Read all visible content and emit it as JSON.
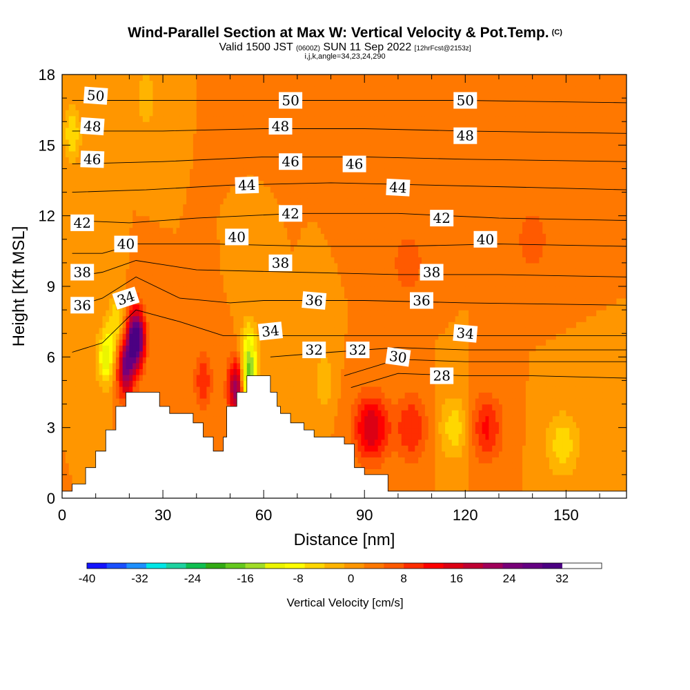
{
  "header": {
    "title": "Wind-Parallel Section at Max W: Vertical Velocity & Pot.Temp.",
    "copyright": "(C)",
    "subtitle_main": "Valid 1500 JST",
    "subtitle_utc": "(0600Z)",
    "subtitle_date": "SUN 11 Sep 2022",
    "subtitle_fcst": "[12hrFcst@2153z]",
    "params": "i,j,k,angle=34,23,24,290"
  },
  "chart_data": {
    "type": "heatmap",
    "xlabel": "Distance [nm]",
    "ylabel": "Height [Kft MSL]",
    "xlim": [
      0,
      168
    ],
    "ylim": [
      0,
      18
    ],
    "xticks": [
      0,
      30,
      60,
      90,
      120,
      150
    ],
    "yticks": [
      0,
      3,
      6,
      9,
      12,
      15,
      18
    ],
    "colorbar": {
      "title": "Vertical Velocity [cm/s]",
      "min": -40,
      "max": 38,
      "step": 3,
      "ticks": [
        -40,
        -32,
        -24,
        -16,
        -8,
        0,
        8,
        16,
        24,
        32
      ],
      "colors": [
        "#1414ff",
        "#1a50ff",
        "#1e90ff",
        "#00e6e6",
        "#1ed2a0",
        "#0fbe50",
        "#32aa14",
        "#64c81e",
        "#a0dc28",
        "#ebf500",
        "#ffff00",
        "#ffd700",
        "#ffb400",
        "#ff9600",
        "#ff7800",
        "#ff5a00",
        "#ff2d00",
        "#ff0000",
        "#dc0014",
        "#be0032",
        "#a0005a",
        "#780078",
        "#640082",
        "#4b0082"
      ]
    },
    "background_w": 2,
    "w_features": [
      {
        "x": 22,
        "z": 6.8,
        "w": 34
      },
      {
        "x": 19,
        "z": 5.5,
        "w": 22
      },
      {
        "x": 13,
        "z": 6.0,
        "w": -14
      },
      {
        "x": 16,
        "z": 7.5,
        "w": -8
      },
      {
        "x": 52,
        "z": 4.7,
        "w": 24
      },
      {
        "x": 55,
        "z": 5.0,
        "w": -20
      },
      {
        "x": 56,
        "z": 6.5,
        "w": -10
      },
      {
        "x": 92,
        "z": 3.0,
        "w": 15
      },
      {
        "x": 104,
        "z": 3.0,
        "w": 9
      },
      {
        "x": 126,
        "z": 3.0,
        "w": 10
      },
      {
        "x": 117,
        "z": 3.0,
        "w": -8
      },
      {
        "x": 149,
        "z": 2.3,
        "w": -8
      },
      {
        "x": 3,
        "z": 15.5,
        "w": -9
      },
      {
        "x": 25,
        "z": 17,
        "w": -6
      },
      {
        "x": 103,
        "z": 10.0,
        "w": 5
      },
      {
        "x": 140,
        "z": 11.0,
        "w": 5
      },
      {
        "x": 42,
        "z": 5.0,
        "w": 9
      },
      {
        "x": 78,
        "z": 5.0,
        "w": -6
      }
    ],
    "terrain": [
      [
        0,
        0.3
      ],
      [
        3,
        0.3
      ],
      [
        3,
        0.6
      ],
      [
        7,
        0.6
      ],
      [
        7,
        1.3
      ],
      [
        10,
        1.3
      ],
      [
        10,
        2.0
      ],
      [
        13,
        2.0
      ],
      [
        13,
        2.9
      ],
      [
        16,
        2.9
      ],
      [
        16,
        3.9
      ],
      [
        19,
        3.9
      ],
      [
        19,
        4.5
      ],
      [
        29,
        4.5
      ],
      [
        29,
        3.9
      ],
      [
        32,
        3.9
      ],
      [
        32,
        3.6
      ],
      [
        39,
        3.6
      ],
      [
        39,
        3.2
      ],
      [
        42,
        3.2
      ],
      [
        42,
        2.6
      ],
      [
        45,
        2.6
      ],
      [
        45,
        2.0
      ],
      [
        48,
        2.0
      ],
      [
        48,
        2.6
      ],
      [
        49,
        2.6
      ],
      [
        49,
        3.9
      ],
      [
        52,
        3.9
      ],
      [
        52,
        4.5
      ],
      [
        55,
        4.5
      ],
      [
        55,
        5.2
      ],
      [
        62,
        5.2
      ],
      [
        62,
        4.5
      ],
      [
        64,
        4.5
      ],
      [
        64,
        3.9
      ],
      [
        65,
        3.9
      ],
      [
        65,
        3.6
      ],
      [
        68,
        3.6
      ],
      [
        68,
        3.2
      ],
      [
        72,
        3.2
      ],
      [
        72,
        2.9
      ],
      [
        75,
        2.9
      ],
      [
        75,
        2.6
      ],
      [
        84,
        2.6
      ],
      [
        84,
        2.3
      ],
      [
        87,
        2.3
      ],
      [
        87,
        1.3
      ],
      [
        90,
        1.3
      ],
      [
        90,
        1.0
      ],
      [
        97,
        1.0
      ],
      [
        97,
        0.3
      ],
      [
        168,
        0.3
      ]
    ],
    "theta_contours": [
      {
        "level": 28,
        "pts": [
          [
            86,
            4.7
          ],
          [
            100,
            5.3
          ],
          [
            120,
            5.2
          ],
          [
            140,
            5.2
          ],
          [
            168,
            5.1
          ]
        ]
      },
      {
        "level": 30,
        "pts": [
          [
            84,
            5.2
          ],
          [
            100,
            5.9
          ],
          [
            120,
            5.8
          ],
          [
            140,
            5.8
          ],
          [
            168,
            5.8
          ]
        ]
      },
      {
        "level": 32,
        "pts": [
          [
            62,
            6.0
          ],
          [
            80,
            6.2
          ],
          [
            100,
            6.4
          ],
          [
            120,
            6.3
          ],
          [
            140,
            6.3
          ],
          [
            168,
            6.3
          ]
        ]
      },
      {
        "level": 34,
        "pts": [
          [
            3,
            6.2
          ],
          [
            12,
            6.6
          ],
          [
            22,
            8.0
          ],
          [
            35,
            7.5
          ],
          [
            48,
            6.9
          ],
          [
            58,
            6.9
          ],
          [
            80,
            6.9
          ],
          [
            110,
            6.9
          ],
          [
            140,
            6.9
          ],
          [
            168,
            6.9
          ]
        ]
      },
      {
        "level": 36,
        "pts": [
          [
            3,
            8.1
          ],
          [
            12,
            8.5
          ],
          [
            22,
            9.4
          ],
          [
            35,
            8.5
          ],
          [
            50,
            8.3
          ],
          [
            60,
            8.4
          ],
          [
            90,
            8.4
          ],
          [
            120,
            8.3
          ],
          [
            168,
            8.2
          ]
        ]
      },
      {
        "level": 38,
        "pts": [
          [
            3,
            9.4
          ],
          [
            12,
            9.6
          ],
          [
            22,
            10.1
          ],
          [
            40,
            9.7
          ],
          [
            70,
            9.6
          ],
          [
            100,
            9.5
          ],
          [
            130,
            9.5
          ],
          [
            168,
            9.4
          ]
        ]
      },
      {
        "level": 40,
        "pts": [
          [
            3,
            10.4
          ],
          [
            12,
            10.4
          ],
          [
            22,
            10.8
          ],
          [
            45,
            10.8
          ],
          [
            75,
            10.7
          ],
          [
            100,
            10.7
          ],
          [
            130,
            10.8
          ],
          [
            168,
            10.7
          ]
        ]
      },
      {
        "level": 42,
        "pts": [
          [
            3,
            11.8
          ],
          [
            20,
            11.7
          ],
          [
            40,
            11.9
          ],
          [
            70,
            12.1
          ],
          [
            100,
            12.1
          ],
          [
            130,
            11.9
          ],
          [
            168,
            11.8
          ]
        ]
      },
      {
        "level": 44,
        "pts": [
          [
            3,
            13.0
          ],
          [
            25,
            13.1
          ],
          [
            50,
            13.3
          ],
          [
            80,
            13.4
          ],
          [
            110,
            13.3
          ],
          [
            140,
            13.2
          ],
          [
            168,
            13.1
          ]
        ]
      },
      {
        "level": 46,
        "pts": [
          [
            3,
            14.2
          ],
          [
            30,
            14.3
          ],
          [
            60,
            14.5
          ],
          [
            90,
            14.5
          ],
          [
            120,
            14.4
          ],
          [
            168,
            14.3
          ]
        ]
      },
      {
        "level": 48,
        "pts": [
          [
            3,
            15.6
          ],
          [
            30,
            15.6
          ],
          [
            60,
            15.7
          ],
          [
            90,
            15.7
          ],
          [
            120,
            15.6
          ],
          [
            168,
            15.5
          ]
        ]
      },
      {
        "level": 50,
        "pts": [
          [
            3,
            16.9
          ],
          [
            30,
            16.9
          ],
          [
            60,
            16.9
          ],
          [
            90,
            16.9
          ],
          [
            120,
            16.9
          ],
          [
            168,
            16.8
          ]
        ]
      }
    ],
    "contour_labels": [
      {
        "text": "50",
        "x": 10,
        "z": 17.1,
        "angle": 4
      },
      {
        "text": "50",
        "x": 68,
        "z": 16.9,
        "angle": 0
      },
      {
        "text": "50",
        "x": 120,
        "z": 16.9,
        "angle": 0
      },
      {
        "text": "48",
        "x": 9,
        "z": 15.8,
        "angle": 4
      },
      {
        "text": "48",
        "x": 65,
        "z": 15.8,
        "angle": 0
      },
      {
        "text": "48",
        "x": 120,
        "z": 15.4,
        "angle": 0
      },
      {
        "text": "46",
        "x": 9,
        "z": 14.4,
        "angle": 2
      },
      {
        "text": "46",
        "x": 68,
        "z": 14.3,
        "angle": 0
      },
      {
        "text": "46",
        "x": 87,
        "z": 14.2,
        "angle": 0
      },
      {
        "text": "44",
        "x": 55,
        "z": 13.3,
        "angle": -2
      },
      {
        "text": "44",
        "x": 100,
        "z": 13.2,
        "angle": 3
      },
      {
        "text": "42",
        "x": 6,
        "z": 11.7,
        "angle": 0
      },
      {
        "text": "42",
        "x": 68,
        "z": 12.1,
        "angle": 0
      },
      {
        "text": "42",
        "x": 113,
        "z": 11.9,
        "angle": 0
      },
      {
        "text": "40",
        "x": 19,
        "z": 10.8,
        "angle": 0
      },
      {
        "text": "40",
        "x": 52,
        "z": 11.1,
        "angle": 0
      },
      {
        "text": "40",
        "x": 126,
        "z": 11.0,
        "angle": 0
      },
      {
        "text": "38",
        "x": 6,
        "z": 9.6,
        "angle": 0
      },
      {
        "text": "38",
        "x": 65,
        "z": 10.0,
        "angle": 0
      },
      {
        "text": "38",
        "x": 110,
        "z": 9.6,
        "angle": 0
      },
      {
        "text": "36",
        "x": 6,
        "z": 8.2,
        "angle": 0
      },
      {
        "text": "36",
        "x": 75,
        "z": 8.4,
        "angle": 5
      },
      {
        "text": "36",
        "x": 107,
        "z": 8.4,
        "angle": 0
      },
      {
        "text": "34",
        "x": 19,
        "z": 8.5,
        "angle": -18
      },
      {
        "text": "34",
        "x": 62,
        "z": 7.1,
        "angle": -6
      },
      {
        "text": "34",
        "x": 120,
        "z": 7.0,
        "angle": 5
      },
      {
        "text": "32",
        "x": 75,
        "z": 6.3,
        "angle": 0
      },
      {
        "text": "32",
        "x": 88,
        "z": 6.3,
        "angle": 0
      },
      {
        "text": "30",
        "x": 100,
        "z": 6.0,
        "angle": 8
      },
      {
        "text": "28",
        "x": 113,
        "z": 5.2,
        "angle": 0
      }
    ]
  }
}
